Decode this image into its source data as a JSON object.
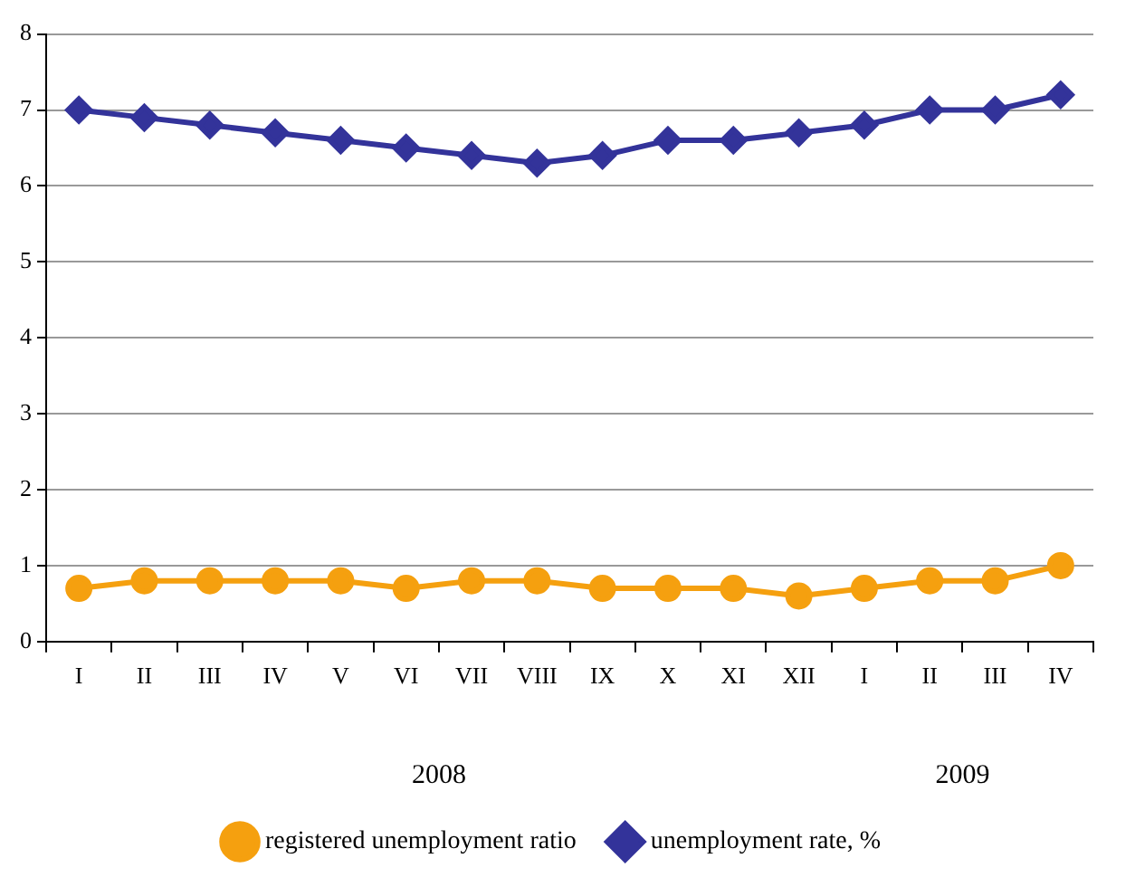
{
  "chart_data": {
    "type": "line",
    "categories": [
      "I",
      "II",
      "III",
      "IV",
      "V",
      "VI",
      "VII",
      "VIII",
      "IX",
      "X",
      "XI",
      "XII",
      "I",
      "II",
      "III",
      "IV"
    ],
    "series": [
      {
        "name": "registered unemployment ratio",
        "color": "#f5a00f",
        "marker": "circle",
        "values": [
          0.7,
          0.8,
          0.8,
          0.8,
          0.8,
          0.7,
          0.8,
          0.8,
          0.7,
          0.7,
          0.7,
          0.6,
          0.7,
          0.8,
          0.8,
          1.0
        ]
      },
      {
        "name": "unemployment rate, %",
        "color": "#33339a",
        "marker": "diamond",
        "values": [
          7.0,
          6.9,
          6.8,
          6.7,
          6.6,
          6.5,
          6.4,
          6.3,
          6.4,
          6.6,
          6.6,
          6.7,
          6.8,
          7.0,
          7.0,
          7.2
        ]
      }
    ],
    "annotations": [
      "2008",
      "2009"
    ],
    "ylim": [
      0,
      8
    ],
    "yticks": [
      0,
      1,
      2,
      3,
      4,
      5,
      6,
      7,
      8
    ],
    "grid": "y",
    "legend": "bottom"
  }
}
